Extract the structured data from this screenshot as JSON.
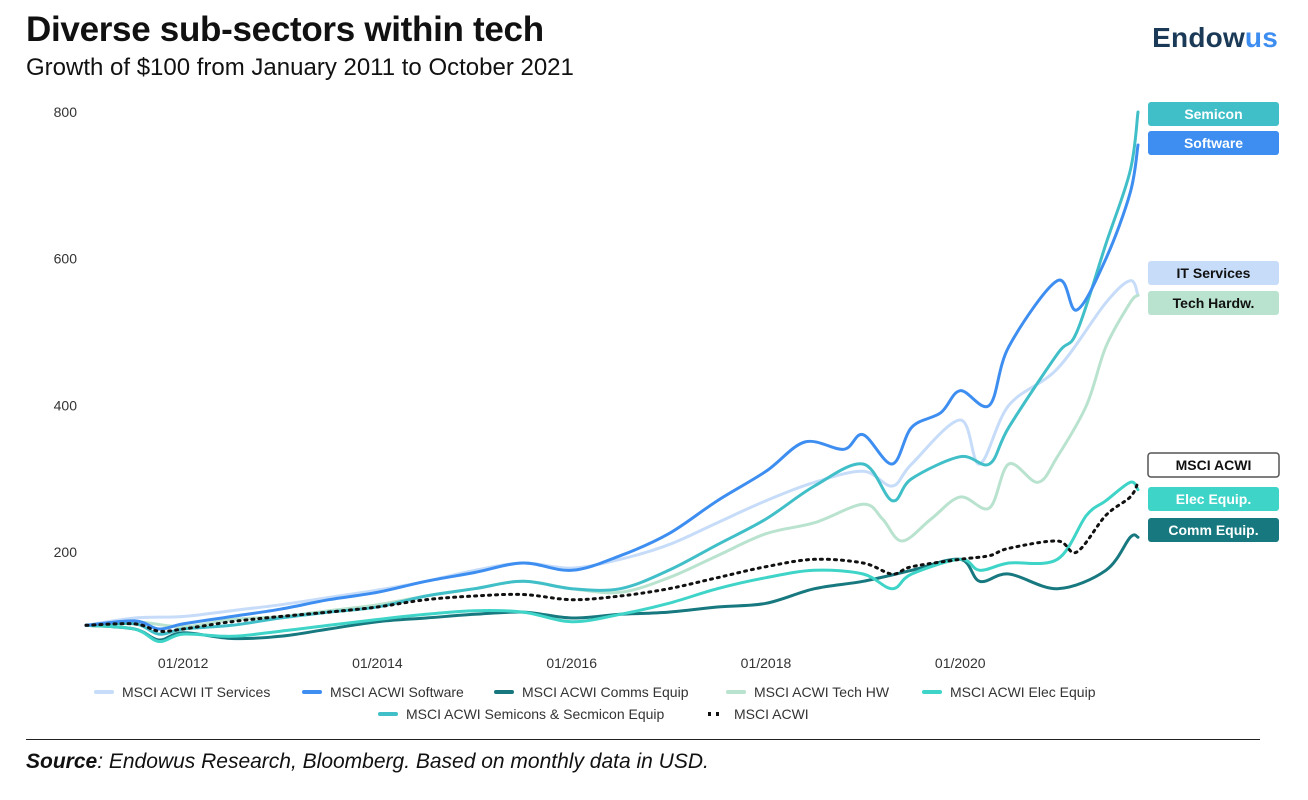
{
  "header": {
    "title": "Diverse sub-sectors within tech",
    "subtitle": "Growth of $100 from January 2011 to October 2021",
    "logo_main": "Endow",
    "logo_accent": "us"
  },
  "footer": {
    "source_label": "Source",
    "source_text": ": Endowus Research, Bloomberg. Based on monthly data in USD."
  },
  "colors": {
    "it_services": "#c6dcf9",
    "software": "#3d8ef0",
    "comms": "#17797f",
    "tech_hw": "#b9e3cf",
    "elec": "#3fd4c8",
    "semis": "#41bfc8",
    "acwi": "#111111"
  },
  "chart_data": {
    "type": "line",
    "title": "Diverse sub-sectors within tech",
    "subtitle": "Growth of $100 from January 2011 to October 2021",
    "xlabel": "",
    "ylabel": "",
    "x_start": "2011-01",
    "x_end": "2021-10",
    "ylim": [
      60,
      820
    ],
    "yticks": [
      200,
      400,
      600,
      800
    ],
    "xticks": [
      {
        "label": "01/2012",
        "t": 1
      },
      {
        "label": "01/2014",
        "t": 3
      },
      {
        "label": "01/2016",
        "t": 5
      },
      {
        "label": "01/2018",
        "t": 7
      },
      {
        "label": "01/2020",
        "t": 9
      }
    ],
    "grid": false,
    "legend_position": "bottom",
    "series": [
      {
        "key": "it_services",
        "name": "MSCI ACWI IT Services",
        "style": "solid",
        "end_label": "IT Services",
        "label_text_color": "#111111",
        "points": [
          [
            0,
            100
          ],
          [
            0.5,
            110
          ],
          [
            1,
            112
          ],
          [
            1.5,
            120
          ],
          [
            2,
            128
          ],
          [
            2.5,
            138
          ],
          [
            3,
            148
          ],
          [
            3.5,
            160
          ],
          [
            4,
            175
          ],
          [
            4.5,
            185
          ],
          [
            5,
            178
          ],
          [
            5.5,
            190
          ],
          [
            6,
            210
          ],
          [
            6.5,
            240
          ],
          [
            7,
            270
          ],
          [
            7.5,
            295
          ],
          [
            8,
            310
          ],
          [
            8.3,
            290
          ],
          [
            8.5,
            320
          ],
          [
            9,
            380
          ],
          [
            9.2,
            320
          ],
          [
            9.5,
            400
          ],
          [
            10,
            450
          ],
          [
            10.5,
            540
          ],
          [
            10.75,
            570
          ],
          [
            10.83,
            550
          ]
        ]
      },
      {
        "key": "software",
        "name": "MSCI ACWI Software",
        "style": "solid",
        "end_label": "Software",
        "label_text_color": "#ffffff",
        "points": [
          [
            0,
            100
          ],
          [
            0.5,
            106
          ],
          [
            0.75,
            95
          ],
          [
            1,
            102
          ],
          [
            1.5,
            112
          ],
          [
            2,
            122
          ],
          [
            2.5,
            135
          ],
          [
            3,
            145
          ],
          [
            3.5,
            160
          ],
          [
            4,
            172
          ],
          [
            4.5,
            185
          ],
          [
            5,
            175
          ],
          [
            5.5,
            195
          ],
          [
            6,
            225
          ],
          [
            6.5,
            270
          ],
          [
            7,
            310
          ],
          [
            7.4,
            350
          ],
          [
            7.8,
            340
          ],
          [
            8,
            360
          ],
          [
            8.3,
            320
          ],
          [
            8.5,
            370
          ],
          [
            8.8,
            390
          ],
          [
            9,
            420
          ],
          [
            9.3,
            400
          ],
          [
            9.5,
            480
          ],
          [
            10,
            570
          ],
          [
            10.2,
            530
          ],
          [
            10.5,
            600
          ],
          [
            10.75,
            690
          ],
          [
            10.83,
            755
          ]
        ]
      },
      {
        "key": "comms",
        "name": "MSCI ACWI Comms Equip",
        "style": "solid",
        "end_label": "Comm Equip.",
        "label_text_color": "#ffffff",
        "points": [
          [
            0,
            100
          ],
          [
            0.5,
            95
          ],
          [
            0.75,
            80
          ],
          [
            1,
            90
          ],
          [
            1.5,
            82
          ],
          [
            2,
            85
          ],
          [
            2.5,
            95
          ],
          [
            3,
            105
          ],
          [
            3.5,
            110
          ],
          [
            4,
            115
          ],
          [
            4.5,
            118
          ],
          [
            5,
            110
          ],
          [
            5.5,
            115
          ],
          [
            6,
            118
          ],
          [
            6.5,
            125
          ],
          [
            7,
            130
          ],
          [
            7.5,
            150
          ],
          [
            8,
            160
          ],
          [
            8.5,
            175
          ],
          [
            9,
            190
          ],
          [
            9.2,
            160
          ],
          [
            9.5,
            170
          ],
          [
            10,
            150
          ],
          [
            10.5,
            175
          ],
          [
            10.75,
            220
          ],
          [
            10.83,
            220
          ]
        ]
      },
      {
        "key": "tech_hw",
        "name": "MSCI ACWI Tech HW",
        "style": "solid",
        "end_label": "Tech Hardw.",
        "label_text_color": "#111111",
        "points": [
          [
            0,
            100
          ],
          [
            0.5,
            105
          ],
          [
            1,
            98
          ],
          [
            1.5,
            108
          ],
          [
            2,
            112
          ],
          [
            2.5,
            120
          ],
          [
            3,
            128
          ],
          [
            3.5,
            140
          ],
          [
            4,
            150
          ],
          [
            4.5,
            160
          ],
          [
            5,
            150
          ],
          [
            5.5,
            145
          ],
          [
            6,
            165
          ],
          [
            6.5,
            195
          ],
          [
            7,
            225
          ],
          [
            7.5,
            240
          ],
          [
            8,
            265
          ],
          [
            8.2,
            245
          ],
          [
            8.4,
            215
          ],
          [
            8.7,
            245
          ],
          [
            9,
            275
          ],
          [
            9.3,
            260
          ],
          [
            9.5,
            320
          ],
          [
            9.8,
            295
          ],
          [
            10,
            330
          ],
          [
            10.3,
            400
          ],
          [
            10.5,
            480
          ],
          [
            10.75,
            540
          ],
          [
            10.83,
            550
          ]
        ]
      },
      {
        "key": "elec",
        "name": "MSCI ACWI Elec Equip",
        "style": "solid",
        "end_label": "Elec Equip.",
        "label_text_color": "#ffffff",
        "points": [
          [
            0,
            100
          ],
          [
            0.5,
            95
          ],
          [
            0.75,
            78
          ],
          [
            1,
            88
          ],
          [
            1.5,
            85
          ],
          [
            2,
            92
          ],
          [
            2.5,
            100
          ],
          [
            3,
            108
          ],
          [
            3.5,
            115
          ],
          [
            4,
            120
          ],
          [
            4.5,
            118
          ],
          [
            5,
            105
          ],
          [
            5.5,
            115
          ],
          [
            6,
            130
          ],
          [
            6.5,
            150
          ],
          [
            7,
            165
          ],
          [
            7.5,
            175
          ],
          [
            8,
            170
          ],
          [
            8.3,
            150
          ],
          [
            8.5,
            170
          ],
          [
            9,
            190
          ],
          [
            9.2,
            175
          ],
          [
            9.5,
            185
          ],
          [
            10,
            190
          ],
          [
            10.3,
            250
          ],
          [
            10.5,
            270
          ],
          [
            10.75,
            295
          ],
          [
            10.83,
            285
          ]
        ]
      },
      {
        "key": "semis",
        "name": "MSCI ACWI Semicons & Secmicon Equip",
        "style": "solid",
        "end_label": "Semicon",
        "label_text_color": "#ffffff",
        "points": [
          [
            0,
            100
          ],
          [
            0.5,
            102
          ],
          [
            0.75,
            88
          ],
          [
            1,
            95
          ],
          [
            1.5,
            100
          ],
          [
            2,
            110
          ],
          [
            2.5,
            118
          ],
          [
            3,
            125
          ],
          [
            3.5,
            140
          ],
          [
            4,
            150
          ],
          [
            4.5,
            160
          ],
          [
            5,
            150
          ],
          [
            5.5,
            150
          ],
          [
            6,
            175
          ],
          [
            6.5,
            210
          ],
          [
            7,
            245
          ],
          [
            7.5,
            290
          ],
          [
            8,
            320
          ],
          [
            8.3,
            270
          ],
          [
            8.5,
            300
          ],
          [
            9,
            330
          ],
          [
            9.3,
            320
          ],
          [
            9.5,
            370
          ],
          [
            10,
            470
          ],
          [
            10.2,
            500
          ],
          [
            10.5,
            620
          ],
          [
            10.75,
            720
          ],
          [
            10.83,
            800
          ]
        ]
      },
      {
        "key": "acwi",
        "name": "MSCI ACWI",
        "style": "dotted",
        "end_label": "MSCI ACWI",
        "label_text_color": "#111111",
        "points": [
          [
            0,
            100
          ],
          [
            0.5,
            102
          ],
          [
            0.75,
            92
          ],
          [
            1,
            95
          ],
          [
            1.5,
            105
          ],
          [
            2,
            112
          ],
          [
            2.5,
            118
          ],
          [
            3,
            125
          ],
          [
            3.5,
            135
          ],
          [
            4,
            140
          ],
          [
            4.5,
            142
          ],
          [
            5,
            135
          ],
          [
            5.5,
            140
          ],
          [
            6,
            150
          ],
          [
            6.5,
            165
          ],
          [
            7,
            180
          ],
          [
            7.5,
            190
          ],
          [
            8,
            185
          ],
          [
            8.3,
            170
          ],
          [
            8.5,
            180
          ],
          [
            9,
            190
          ],
          [
            9.3,
            195
          ],
          [
            9.5,
            205
          ],
          [
            10,
            215
          ],
          [
            10.2,
            200
          ],
          [
            10.5,
            250
          ],
          [
            10.75,
            275
          ],
          [
            10.83,
            295
          ]
        ]
      }
    ],
    "end_labels_order": [
      "semis",
      "software",
      "it_services",
      "tech_hw",
      "acwi",
      "elec",
      "comms"
    ],
    "legend_rows": [
      [
        "it_services",
        "software",
        "comms",
        "tech_hw",
        "elec"
      ],
      [
        "semis",
        "acwi"
      ]
    ]
  }
}
